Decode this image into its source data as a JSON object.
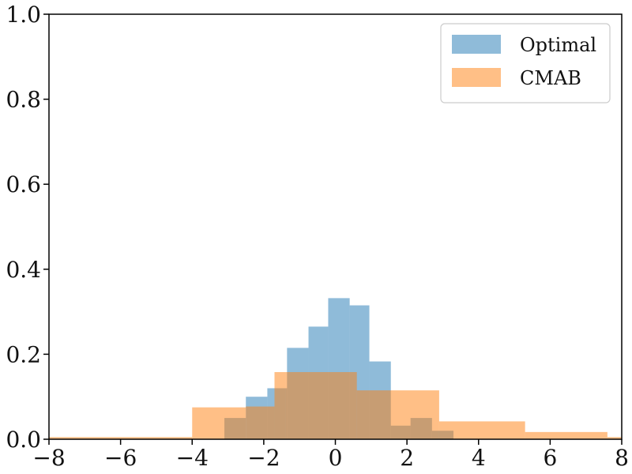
{
  "chart_data": {
    "type": "histogram",
    "xlim": [
      -8,
      8
    ],
    "ylim": [
      0,
      1.0
    ],
    "x_ticks": [
      -8,
      -6,
      -4,
      -2,
      0,
      2,
      4,
      6,
      8
    ],
    "x_tick_labels": [
      "−8",
      "−6",
      "−4",
      "−2",
      "0",
      "2",
      "4",
      "6",
      "8"
    ],
    "y_ticks": [
      0,
      0.2,
      0.4,
      0.6,
      0.8,
      1.0
    ],
    "y_tick_labels": [
      "0.0",
      "0.2",
      "0.4",
      "0.6",
      "0.8",
      "1.0"
    ],
    "legend_position": "top-right",
    "grid": false,
    "series": [
      {
        "name": "Optimal",
        "color": "#1f77b4",
        "bins": [
          {
            "x0": -3.1,
            "x1": -2.5,
            "y": 0.05
          },
          {
            "x0": -2.5,
            "x1": -1.9,
            "y": 0.1
          },
          {
            "x0": -1.9,
            "x1": -1.35,
            "y": 0.12
          },
          {
            "x0": -1.35,
            "x1": -0.75,
            "y": 0.215
          },
          {
            "x0": -0.75,
            "x1": -0.2,
            "y": 0.265
          },
          {
            "x0": -0.2,
            "x1": 0.4,
            "y": 0.332
          },
          {
            "x0": 0.4,
            "x1": 0.95,
            "y": 0.315
          },
          {
            "x0": 0.95,
            "x1": 1.55,
            "y": 0.183
          },
          {
            "x0": 1.55,
            "x1": 2.1,
            "y": 0.032
          },
          {
            "x0": 2.1,
            "x1": 2.7,
            "y": 0.05
          },
          {
            "x0": 2.7,
            "x1": 3.3,
            "y": 0.02
          }
        ]
      },
      {
        "name": "CMAB",
        "color": "#ff7f0e",
        "bins": [
          {
            "x0": -8.0,
            "x1": -4.0,
            "y": 0.005
          },
          {
            "x0": -4.0,
            "x1": -2.5,
            "y": 0.075
          },
          {
            "x0": -2.5,
            "x1": -1.7,
            "y": 0.077
          },
          {
            "x0": -1.7,
            "x1": -1.4,
            "y": 0.158
          },
          {
            "x0": -1.4,
            "x1": 0.6,
            "y": 0.158
          },
          {
            "x0": 0.6,
            "x1": 1.6,
            "y": 0.115
          },
          {
            "x0": 1.6,
            "x1": 2.9,
            "y": 0.115
          },
          {
            "x0": 2.9,
            "x1": 5.3,
            "y": 0.042
          },
          {
            "x0": 5.3,
            "x1": 7.6,
            "y": 0.017
          },
          {
            "x0": 7.6,
            "x1": 8.0,
            "y": 0.005
          }
        ]
      }
    ]
  }
}
